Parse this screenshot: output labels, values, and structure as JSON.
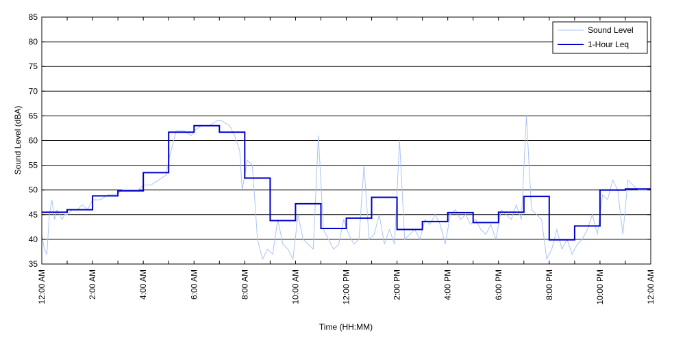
{
  "chart_data": {
    "type": "line",
    "title": "",
    "xlabel": "Time (HH:MM)",
    "ylabel": "Sound Level (dBA)",
    "xlim": [
      0,
      24
    ],
    "ylim": [
      35,
      85
    ],
    "y_ticks": [
      35,
      40,
      45,
      50,
      55,
      60,
      65,
      70,
      75,
      80,
      85
    ],
    "x_ticks": [
      {
        "hour": 0,
        "label": "12:00 AM"
      },
      {
        "hour": 2,
        "label": "2:00 AM"
      },
      {
        "hour": 4,
        "label": "4:00 AM"
      },
      {
        "hour": 6,
        "label": "6:00 AM"
      },
      {
        "hour": 8,
        "label": "8:00 AM"
      },
      {
        "hour": 10,
        "label": "10:00 AM"
      },
      {
        "hour": 12,
        "label": "12:00 PM"
      },
      {
        "hour": 14,
        "label": "2:00 PM"
      },
      {
        "hour": 16,
        "label": "4:00 PM"
      },
      {
        "hour": 18,
        "label": "6:00 PM"
      },
      {
        "hour": 20,
        "label": "8:00 PM"
      },
      {
        "hour": 22,
        "label": "10:00 PM"
      },
      {
        "hour": 24,
        "label": "12:00 AM"
      }
    ],
    "x_minor_ticks": [
      1,
      3,
      5,
      7,
      9,
      11,
      13,
      15,
      17,
      19,
      21,
      23
    ],
    "grid": {
      "horizontal": true,
      "vertical": false
    },
    "legend_position": "top-right",
    "colors": {
      "sound_level": "#a9c4f5",
      "leq": "#0000cc"
    },
    "series": [
      {
        "name": "Sound Level",
        "style": "thin-noisy-line",
        "x": [
          0,
          0.1,
          0.2,
          0.3,
          0.4,
          0.5,
          0.6,
          0.7,
          0.8,
          0.9,
          1.0,
          1.2,
          1.4,
          1.6,
          1.8,
          2.0,
          2.3,
          2.6,
          2.9,
          3.2,
          3.5,
          3.8,
          4.0,
          4.3,
          4.6,
          4.9,
          5.0,
          5.3,
          5.6,
          5.9,
          6.0,
          6.3,
          6.6,
          6.9,
          7.1,
          7.4,
          7.6,
          7.8,
          7.9,
          8.1,
          8.3,
          8.5,
          8.7,
          8.9,
          9.1,
          9.3,
          9.5,
          9.7,
          9.9,
          10.1,
          10.3,
          10.5,
          10.7,
          10.9,
          11.1,
          11.3,
          11.5,
          11.7,
          11.9,
          12.1,
          12.3,
          12.5,
          12.7,
          12.9,
          13.1,
          13.3,
          13.5,
          13.7,
          13.9,
          14.1,
          14.3,
          14.5,
          14.7,
          14.9,
          15.1,
          15.3,
          15.5,
          15.7,
          15.9,
          16.1,
          16.3,
          16.5,
          16.7,
          16.9,
          17.1,
          17.3,
          17.5,
          17.7,
          17.9,
          18.1,
          18.3,
          18.5,
          18.7,
          18.9,
          19.1,
          19.3,
          19.5,
          19.7,
          19.9,
          20.1,
          20.3,
          20.5,
          20.7,
          20.9,
          21.1,
          21.3,
          21.5,
          21.7,
          21.9,
          22.1,
          22.3,
          22.5,
          22.7,
          22.9,
          23.1,
          23.3,
          23.5,
          23.7,
          23.9,
          24.0
        ],
        "y": [
          41,
          38,
          37,
          45,
          48,
          44,
          46,
          45,
          44,
          45,
          45,
          46,
          46,
          47,
          46,
          48,
          48,
          49,
          49,
          50,
          50,
          50,
          51,
          51,
          52,
          53,
          56,
          62,
          62,
          61,
          62,
          63,
          63,
          64,
          64,
          63,
          61,
          58,
          50,
          56,
          55,
          40,
          36,
          38,
          37,
          44,
          39,
          38,
          36,
          45,
          40,
          39,
          38,
          61,
          42,
          40,
          38,
          39,
          44,
          41,
          39,
          40,
          55,
          40,
          41,
          45,
          39,
          42,
          39,
          60,
          40,
          41,
          42,
          40,
          44,
          43,
          45,
          43,
          39,
          45,
          46,
          44,
          45,
          43,
          44,
          42,
          41,
          43,
          40,
          46,
          45,
          44,
          47,
          44,
          65,
          46,
          45,
          44,
          36,
          38,
          42,
          38,
          40,
          37,
          39,
          40,
          42,
          45,
          41,
          49,
          48,
          52,
          50,
          41,
          52,
          51,
          50,
          50,
          50,
          50
        ]
      },
      {
        "name": "1-Hour Leq",
        "style": "step",
        "x": [
          0,
          1,
          2,
          3,
          4,
          5,
          6,
          7,
          8,
          9,
          10,
          11,
          12,
          13,
          14,
          15,
          16,
          17,
          18,
          19,
          20,
          21,
          22,
          23
        ],
        "values": [
          45.5,
          46.0,
          48.8,
          49.8,
          53.5,
          61.7,
          63.0,
          61.7,
          52.4,
          43.8,
          47.2,
          42.2,
          44.3,
          48.5,
          42.0,
          43.6,
          45.4,
          43.4,
          45.5,
          48.7,
          39.9,
          42.7,
          50.0,
          50.2
        ]
      }
    ]
  }
}
